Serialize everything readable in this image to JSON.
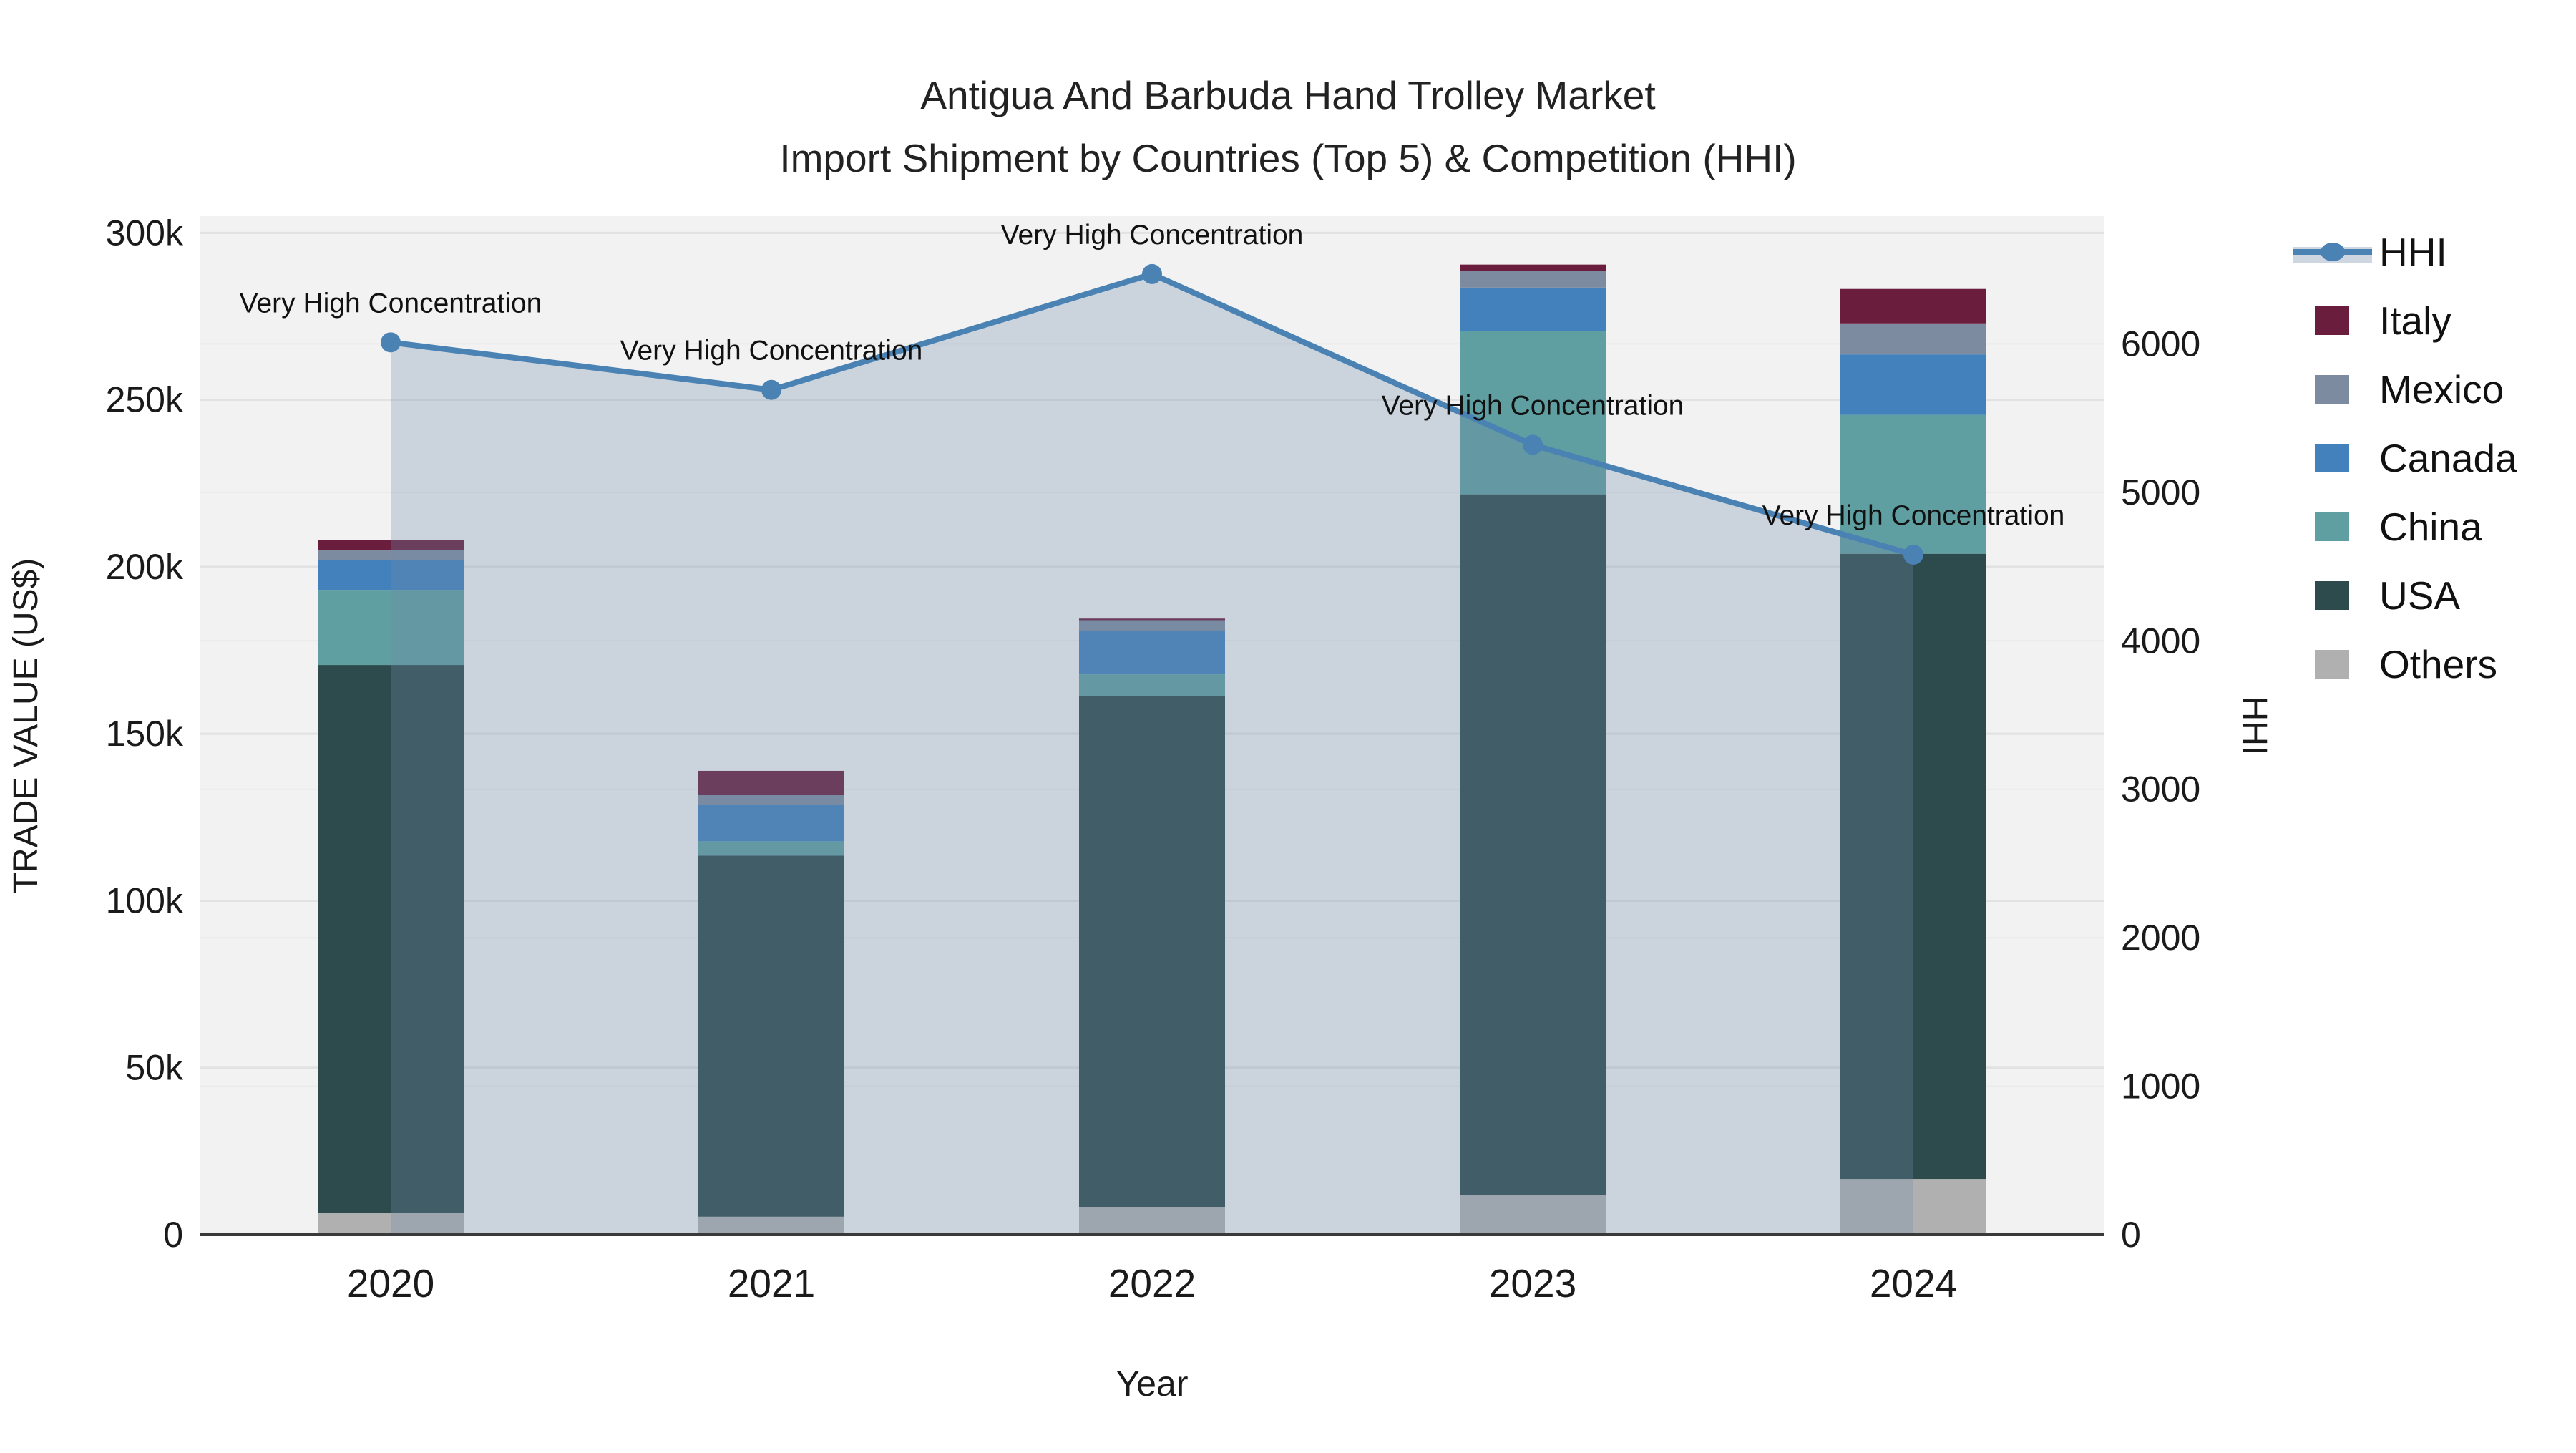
{
  "title": {
    "line1": "Antigua And Barbuda Hand Trolley Market",
    "line2": "Import Shipment by Countries (Top 5) & Competition (HHI)"
  },
  "axis_titles": {
    "x": "Year",
    "y_left": "TRADE VALUE (US$)",
    "y_right": "HHI"
  },
  "legend": {
    "items": [
      {
        "label": "HHI",
        "type": "line",
        "color": "#4a82b4"
      },
      {
        "label": "Italy",
        "type": "swatch",
        "color": "#6b1d3d"
      },
      {
        "label": "Mexico",
        "type": "swatch",
        "color": "#7c8ba0"
      },
      {
        "label": "Canada",
        "type": "swatch",
        "color": "#4381bd"
      },
      {
        "label": "China",
        "type": "swatch",
        "color": "#5f9fa1"
      },
      {
        "label": "USA",
        "type": "swatch",
        "color": "#2d4a4c"
      },
      {
        "label": "Others",
        "type": "swatch",
        "color": "#b0b0b0"
      }
    ]
  },
  "colors": {
    "plot_background": "#f2f2f2",
    "grid_left": "#e2e2e2",
    "grid_right": "#eaeaea",
    "axis_line": "#3a3a3a",
    "text": "#1a1a1a",
    "hhi_line": "#4a82b4",
    "hhi_fill": "rgba(114,138,168,0.30)"
  },
  "chart_data": {
    "type": "bar",
    "subtype": "stacked-bars-with-line-overlay",
    "title": "Antigua And Barbuda Hand Trolley Market — Import Shipment by Countries (Top 5) & Competition (HHI)",
    "xlabel": "Year",
    "ylabel": "TRADE VALUE (US$)",
    "y2label": "HHI",
    "categories": [
      "2020",
      "2021",
      "2022",
      "2023",
      "2024"
    ],
    "series": [
      {
        "name": "Others",
        "color": "#b0b0b0",
        "values": [
          6600,
          5400,
          8200,
          12000,
          16700
        ]
      },
      {
        "name": "USA",
        "color": "#2d4a4c",
        "values": [
          164000,
          108100,
          153000,
          209700,
          187200
        ]
      },
      {
        "name": "China",
        "color": "#5f9fa1",
        "values": [
          22500,
          4300,
          6600,
          48900,
          41600
        ]
      },
      {
        "name": "Canada",
        "color": "#4381bd",
        "values": [
          9000,
          11000,
          12900,
          13000,
          18100
        ]
      },
      {
        "name": "Mexico",
        "color": "#7c8ba0",
        "values": [
          3000,
          2800,
          3300,
          4900,
          9300
        ]
      },
      {
        "name": "Italy",
        "color": "#6b1d3d",
        "values": [
          2900,
          7300,
          500,
          2000,
          10300
        ]
      }
    ],
    "line_series": {
      "name": "HHI",
      "color": "#4a82b4",
      "values": [
        6010,
        5690,
        6470,
        5320,
        4580
      ],
      "area_fill": true
    },
    "annotations": [
      "Very High Concentration",
      "Very High Concentration",
      "Very High Concentration",
      "Very High Concentration",
      "Very High Concentration"
    ],
    "ylim": [
      0,
      305000
    ],
    "y2lim": [
      0,
      6860
    ],
    "yticks": {
      "values": [
        0,
        50000,
        100000,
        150000,
        200000,
        250000,
        300000
      ],
      "labels": [
        "0",
        "50k",
        "100k",
        "150k",
        "200k",
        "250k",
        "300k"
      ]
    },
    "y2ticks": {
      "values": [
        0,
        1000,
        2000,
        3000,
        4000,
        5000,
        6000
      ],
      "labels": [
        "0",
        "1000",
        "2000",
        "3000",
        "4000",
        "5000",
        "6000"
      ]
    },
    "grid": true,
    "legend_position": "right"
  }
}
